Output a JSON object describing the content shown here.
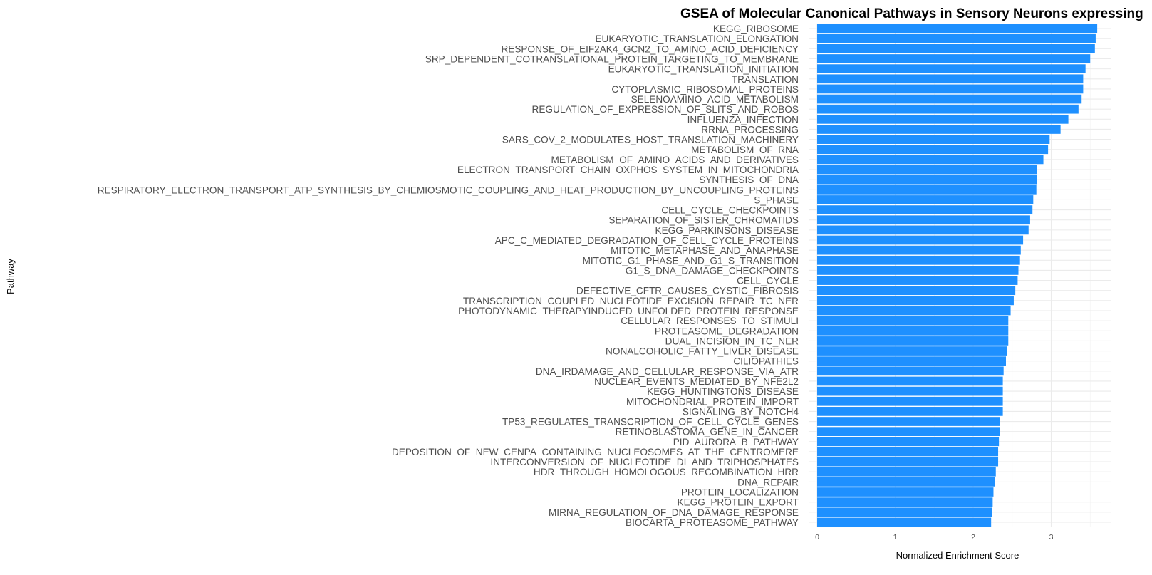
{
  "chart_data": {
    "type": "bar",
    "orientation": "horizontal",
    "title": "GSEA of Molecular Canonical Pathways in Sensory Neurons expressing",
    "xlabel": "Normalized Enrichment Score",
    "ylabel": "Pathway",
    "xlim": [
      0,
      3.7
    ],
    "xticks": [
      0,
      1,
      2,
      3
    ],
    "grid": true,
    "legend": "none",
    "bar_color": "#1E90FF",
    "categories": [
      "KEGG_RIBOSOME",
      "EUKARYOTIC_TRANSLATION_ELONGATION",
      "RESPONSE_OF_EIF2AK4_GCN2_TO_AMINO_ACID_DEFICIENCY",
      "SRP_DEPENDENT_COTRANSLATIONAL_PROTEIN_TARGETING_TO_MEMBRANE",
      "EUKARYOTIC_TRANSLATION_INITIATION",
      "TRANSLATION",
      "CYTOPLASMIC_RIBOSOMAL_PROTEINS",
      "SELENOAMINO_ACID_METABOLISM",
      "REGULATION_OF_EXPRESSION_OF_SLITS_AND_ROBOS",
      "INFLUENZA_INFECTION",
      "RRNA_PROCESSING",
      "SARS_COV_2_MODULATES_HOST_TRANSLATION_MACHINERY",
      "METABOLISM_OF_RNA",
      "METABOLISM_OF_AMINO_ACIDS_AND_DERIVATIVES",
      "ELECTRON_TRANSPORT_CHAIN_OXPHOS_SYSTEM_IN_MITOCHONDRIA",
      "SYNTHESIS_OF_DNA",
      "RESPIRATORY_ELECTRON_TRANSPORT_ATP_SYNTHESIS_BY_CHEMIOSMOTIC_COUPLING_AND_HEAT_PRODUCTION_BY_UNCOUPLING_PROTEINS",
      "S_PHASE",
      "CELL_CYCLE_CHECKPOINTS",
      "SEPARATION_OF_SISTER_CHROMATIDS",
      "KEGG_PARKINSONS_DISEASE",
      "APC_C_MEDIATED_DEGRADATION_OF_CELL_CYCLE_PROTEINS",
      "MITOTIC_METAPHASE_AND_ANAPHASE",
      "MITOTIC_G1_PHASE_AND_G1_S_TRANSITION",
      "G1_S_DNA_DAMAGE_CHECKPOINTS",
      "CELL_CYCLE",
      "DEFECTIVE_CFTR_CAUSES_CYSTIC_FIBROSIS",
      "TRANSCRIPTION_COUPLED_NUCLEOTIDE_EXCISION_REPAIR_TC_NER",
      "PHOTODYNAMIC_THERAPYINDUCED_UNFOLDED_PROTEIN_RESPONSE",
      "CELLULAR_RESPONSES_TO_STIMULI",
      "PROTEASOME_DEGRADATION",
      "DUAL_INCISION_IN_TC_NER",
      "NONALCOHOLIC_FATTY_LIVER_DISEASE",
      "CILIOPATHIES",
      "DNA_IRDAMAGE_AND_CELLULAR_RESPONSE_VIA_ATR",
      "NUCLEAR_EVENTS_MEDIATED_BY_NFE2L2",
      "KEGG_HUNTINGTONS_DISEASE",
      "MITOCHONDRIAL_PROTEIN_IMPORT",
      "SIGNALING_BY_NOTCH4",
      "TP53_REGULATES_TRANSCRIPTION_OF_CELL_CYCLE_GENES",
      "RETINOBLASTOMA_GENE_IN_CANCER",
      "PID_AURORA_B_PATHWAY",
      "DEPOSITION_OF_NEW_CENPA_CONTAINING_NUCLEOSOMES_AT_THE_CENTROMERE",
      "INTERCONVERSION_OF_NUCLEOTIDE_DI_AND_TRIPHOSPHATES",
      "HDR_THROUGH_HOMOLOGOUS_RECOMBINATION_HRR",
      "DNA_REPAIR",
      "PROTEIN_LOCALIZATION",
      "KEGG_PROTEIN_EXPORT",
      "MIRNA_REGULATION_OF_DNA_DAMAGE_RESPONSE",
      "BIOCARTA_PROTEASOME_PATHWAY"
    ],
    "values": [
      3.59,
      3.57,
      3.56,
      3.5,
      3.44,
      3.41,
      3.41,
      3.39,
      3.35,
      3.22,
      3.12,
      2.98,
      2.96,
      2.9,
      2.82,
      2.82,
      2.81,
      2.77,
      2.76,
      2.73,
      2.71,
      2.64,
      2.61,
      2.6,
      2.58,
      2.57,
      2.54,
      2.52,
      2.48,
      2.45,
      2.45,
      2.45,
      2.43,
      2.42,
      2.39,
      2.38,
      2.38,
      2.38,
      2.38,
      2.34,
      2.34,
      2.33,
      2.32,
      2.32,
      2.29,
      2.28,
      2.26,
      2.25,
      2.24,
      2.23
    ]
  }
}
